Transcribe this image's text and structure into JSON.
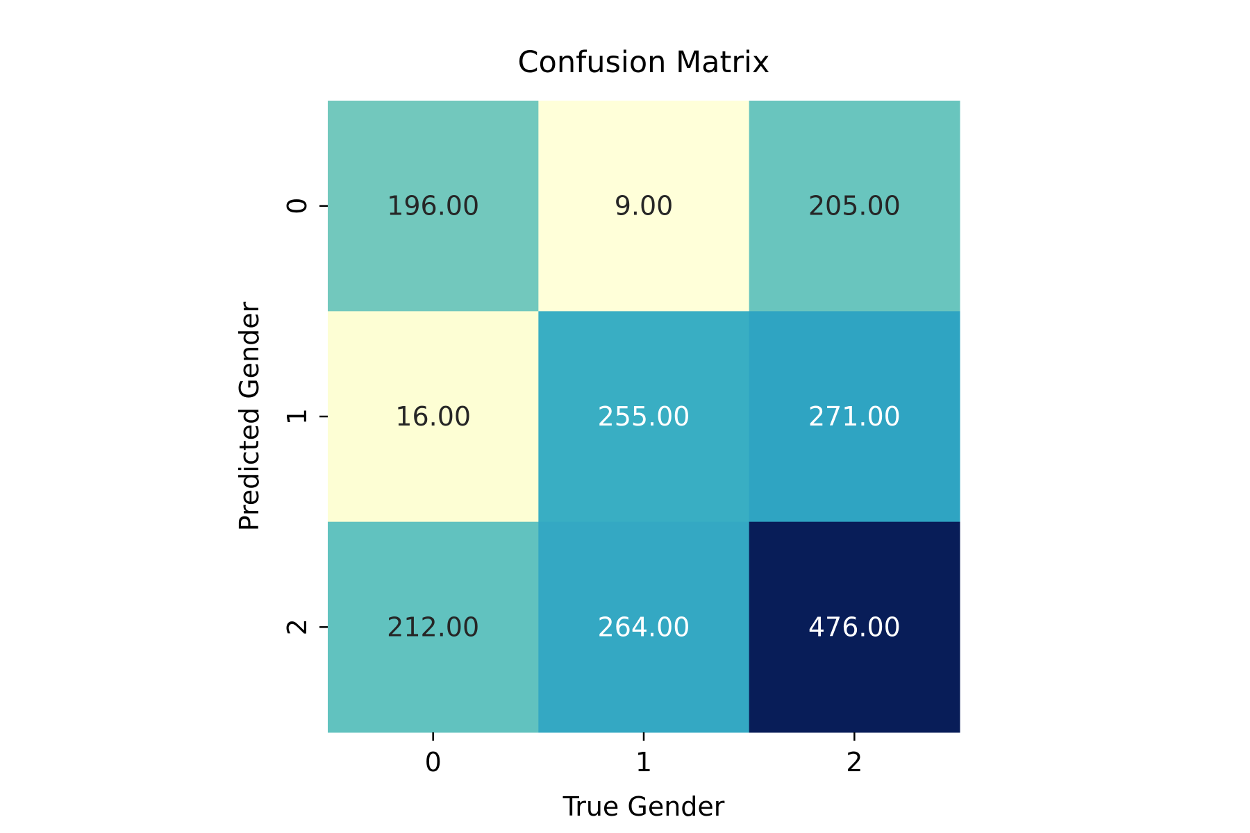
{
  "chart_data": {
    "type": "heatmap",
    "title": "Confusion Matrix",
    "xlabel": "True Gender",
    "ylabel": "Predicted Gender",
    "x_categories": [
      "0",
      "1",
      "2"
    ],
    "y_categories": [
      "0",
      "1",
      "2"
    ],
    "values": [
      [
        196,
        9,
        205
      ],
      [
        16,
        255,
        271
      ],
      [
        212,
        264,
        476
      ]
    ],
    "cell_labels": [
      [
        "196.00",
        "9.00",
        "205.00"
      ],
      [
        "16.00",
        "255.00",
        "271.00"
      ],
      [
        "212.00",
        "264.00",
        "476.00"
      ]
    ],
    "colormap": "YlGnBu",
    "value_range": [
      9,
      476
    ],
    "colorbar": false,
    "grid": false,
    "dark_text_color": "#262626",
    "light_text_color": "#ffffff"
  }
}
